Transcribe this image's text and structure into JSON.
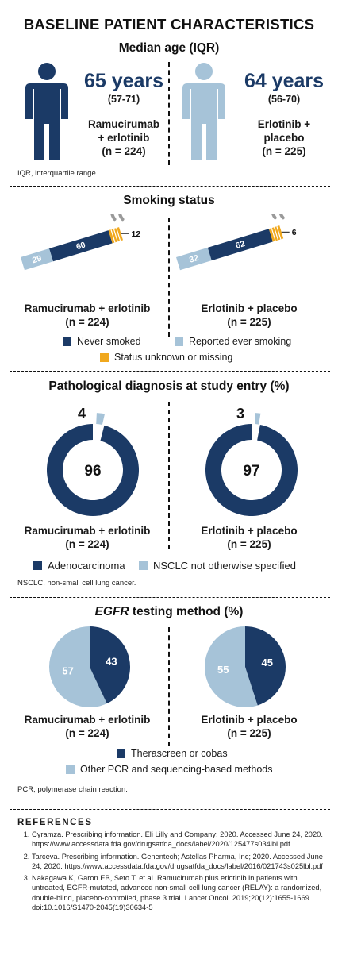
{
  "title": "BASELINE PATIENT CHARACTERISTICS",
  "colors": {
    "navy": "#1b3a66",
    "light_blue": "#a6c3d8",
    "orange": "#f0a81e",
    "smoke": "#9a9a9a"
  },
  "age": {
    "heading": "Median age (IQR)",
    "left": {
      "value": "65 years",
      "iqr": "(57-71)",
      "arm_line1": "Ramucirumab",
      "arm_line2": "+ erlotinib",
      "n": "(n = 224)",
      "icon": "person-icon"
    },
    "right": {
      "value": "64 years",
      "iqr": "(56-70)",
      "arm_line1": "Erlotinib +",
      "arm_line2": "placebo",
      "n": "(n = 225)",
      "icon": "person-icon"
    },
    "footnote": "IQR, interquartile range."
  },
  "smoking": {
    "heading": "Smoking status",
    "left_arm": "Ramucirumab + erlotinib",
    "left_n": "(n = 224)",
    "right_arm": "Erlotinib + placebo",
    "right_n": "(n = 225)",
    "legend": [
      "Never smoked",
      "Reported ever smoking",
      "Status unknown or missing"
    ]
  },
  "pathology": {
    "heading": "Pathological diagnosis at study entry (%)",
    "left_arm": "Ramucirumab + erlotinib",
    "left_n": "(n = 224)",
    "right_arm": "Erlotinib + placebo",
    "right_n": "(n = 225)",
    "legend": [
      "Adenocarcinoma",
      "NSCLC not otherwise specified"
    ],
    "footnote": "NSCLC, non-small cell lung cancer."
  },
  "egfr": {
    "heading_italic": "EGFR",
    "heading_rest": " testing method (%)",
    "left_arm": "Ramucirumab + erlotinib",
    "left_n": "(n = 224)",
    "right_arm": "Erlotinib + placebo",
    "right_n": "(n = 225)",
    "legend": [
      "Therascreen or cobas",
      "Other PCR and sequencing-based methods"
    ],
    "footnote": "PCR, polymerase chain reaction."
  },
  "chart_data": [
    {
      "type": "bar",
      "title": "Smoking status",
      "categories": [
        "Ramucirumab + erlotinib",
        "Erlotinib + placebo"
      ],
      "series": [
        {
          "name": "Reported ever smoking",
          "values": [
            29,
            32
          ],
          "color": "#a6c3d8"
        },
        {
          "name": "Never smoked",
          "values": [
            60,
            62
          ],
          "color": "#1b3a66"
        },
        {
          "name": "Status unknown or missing",
          "values": [
            12,
            6
          ],
          "color": "#f0a81e"
        }
      ],
      "legend": "bottom"
    },
    {
      "type": "pie",
      "title": "Pathological diagnosis at study entry (%)",
      "charts": [
        {
          "label": "Ramucirumab + erlotinib",
          "slices": [
            {
              "name": "Adenocarcinoma",
              "value": 96
            },
            {
              "name": "NSCLC not otherwise specified",
              "value": 4
            }
          ]
        },
        {
          "label": "Erlotinib + placebo",
          "slices": [
            {
              "name": "Adenocarcinoma",
              "value": 97
            },
            {
              "name": "NSCLC not otherwise specified",
              "value": 3
            }
          ]
        }
      ],
      "legend": "bottom"
    },
    {
      "type": "pie",
      "title": "EGFR testing method (%)",
      "charts": [
        {
          "label": "Ramucirumab + erlotinib",
          "slices": [
            {
              "name": "Therascreen or cobas",
              "value": 43
            },
            {
              "name": "Other PCR and sequencing-based methods",
              "value": 57
            }
          ]
        },
        {
          "label": "Erlotinib + placebo",
          "slices": [
            {
              "name": "Therascreen or cobas",
              "value": 45
            },
            {
              "name": "Other PCR and sequencing-based methods",
              "value": 55
            }
          ]
        }
      ],
      "legend": "bottom"
    }
  ],
  "references": {
    "heading": "REFERENCES",
    "items": [
      "Cyramza. Prescribing information. Eli Lilly and Company; 2020. Accessed June 24, 2020. https://www.accessdata.fda.gov/drugsatfda_docs/label/2020/125477s034lbl.pdf",
      "Tarceva. Prescribing information. Genentech; Astellas Pharma, Inc; 2020. Accessed June 24, 2020. https://www.accessdata.fda.gov/drugsatfda_docs/label/2016/021743s025lbl.pdf",
      "Nakagawa K, Garon EB, Seto T, et al. Ramucirumab plus erlotinib in patients with untreated, EGFR-mutated, advanced non-small cell lung cancer (RELAY): a randomized, double-blind, placebo-controlled, phase 3 trial. Lancet Oncol. 2019;20(12):1655-1669. doi:10.1016/S1470-2045(19)30634-5"
    ]
  }
}
